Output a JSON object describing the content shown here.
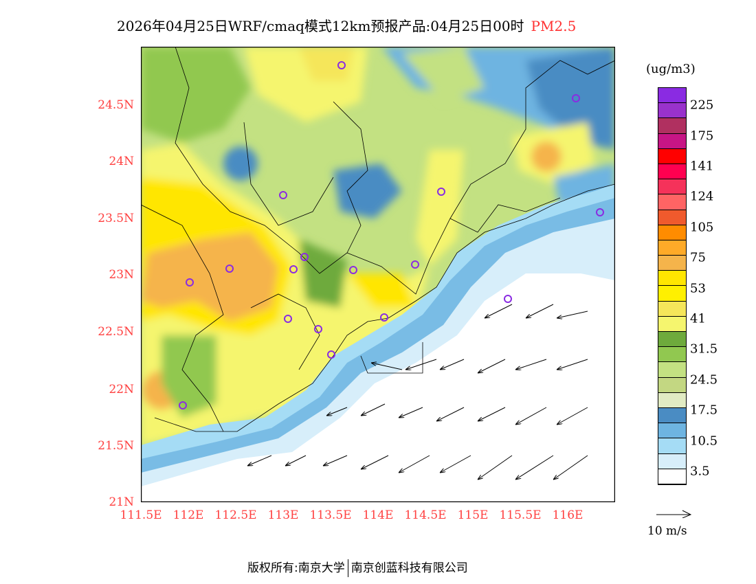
{
  "title": {
    "main": "2026年04月25日WRF/cmaq模式12km预报产品:04月25日00时",
    "pollutant": "PM2.5"
  },
  "axes": {
    "lat_labels": [
      "24.5N",
      "24N",
      "23.5N",
      "23N",
      "22.5N",
      "22N",
      "21.5N",
      "21N"
    ],
    "lon_labels": [
      "111.5E",
      "112E",
      "112.5E",
      "113E",
      "113.5E",
      "114E",
      "114.5E",
      "115E",
      "115.5E",
      "116E"
    ]
  },
  "legend": {
    "unit": "(ug/m3)",
    "colors": [
      "#8a2be2",
      "#9932cc",
      "#b03060",
      "#c71585",
      "#ff0000",
      "#ff0050",
      "#f5325a",
      "#ff6464",
      "#f05a2d",
      "#ff8c00",
      "#ffaa28",
      "#f5b44b",
      "#ffe600",
      "#fff000",
      "#f5e65a",
      "#f5f56e",
      "#6eaa3c",
      "#91c850",
      "#c3e182",
      "#c3d782",
      "#e1ebc3",
      "#4a8cc3",
      "#6eb4e1",
      "#a5dcf5",
      "#d7eefa",
      "#ffffff"
    ],
    "labels": [
      "225",
      "175",
      "141",
      "124",
      "105",
      "75",
      "53",
      "41",
      "31.5",
      "24.5",
      "17.5",
      "10.5",
      "3.5"
    ],
    "wind_reference": "10 m/s"
  },
  "footer": {
    "left": "版权所有:南京大学",
    "right": "南京创蓝科技有限公司"
  }
}
